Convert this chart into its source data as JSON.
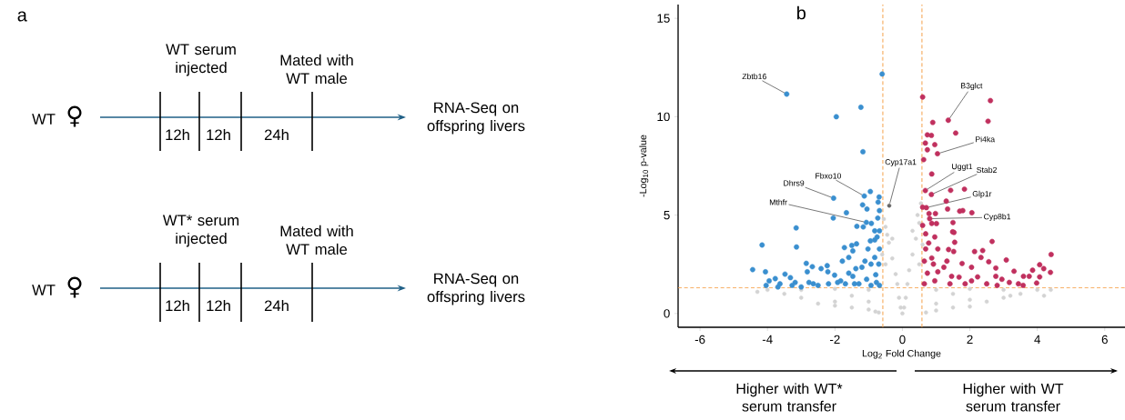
{
  "chart_data": [
    {
      "type": "other",
      "title": "a",
      "annotations": [
        "WT",
        "♀",
        "WT serum injected",
        "Mated with WT male",
        "12h",
        "12h",
        "24h",
        "RNA-Seq on offspring livers",
        "WT",
        "♀",
        "WT* serum injected",
        "Mated with WT male",
        "12h",
        "12h",
        "24h",
        "RNA-Seq on offspring livers"
      ]
    },
    {
      "type": "scatter",
      "title": "b",
      "xlabel": "Log$_{2}$ Fold Change",
      "ylabel": "-Log$_{10}$ p-value",
      "xlim": [
        -6.65,
        6.6
      ],
      "ylim": [
        -0.7,
        15.7
      ],
      "xticks": [
        -6,
        -4,
        -2,
        0,
        2,
        4,
        6
      ],
      "yticks": [
        0,
        5,
        10,
        15
      ],
      "grid": false,
      "marker": "circle",
      "series": [
        {
          "color": "#d3d3d3",
          "x": [
            0,
            0.05,
            -0.05,
            0.1,
            -0.1,
            0.15,
            -0.15,
            0.2,
            -0.2,
            0.3,
            -0.3,
            0.4,
            -0.4,
            0.5,
            -0.5,
            0.55,
            -0.55,
            0.45,
            -0.45,
            0.3,
            -0.3,
            -1,
            -1,
            -1,
            -2,
            -2,
            -2,
            -3,
            -3,
            -3.5,
            -4,
            -4.3,
            -1.5,
            -0.8,
            -2.5,
            1,
            1,
            1,
            2,
            2,
            2,
            3,
            3,
            3.5,
            4,
            4.4,
            4.2,
            1.5,
            2.5,
            3.2,
            0.7,
            -0.7,
            -0.6,
            0.6,
            -0.5,
            0.5,
            1.5,
            -1.5
          ],
          "values": [
            0,
            0.3,
            0.3,
            0.8,
            0.8,
            1.5,
            1.5,
            2.2,
            2.0,
            3.0,
            2.8,
            3.8,
            3.6,
            4.6,
            4.4,
            5.6,
            4.8,
            5.0,
            4.0,
            4.2,
            3.8,
            1.2,
            0.6,
            0.2,
            1.25,
            0.6,
            0.4,
            1.2,
            0.8,
            1.0,
            1.2,
            1.1,
            0.9,
            0.1,
            0.5,
            1.2,
            0.5,
            0.15,
            1.25,
            0.7,
            0.35,
            1.2,
            0.8,
            1.0,
            1.2,
            1.2,
            0.9,
            0.3,
            0.6,
            0.9,
            0.05,
            0.05,
            3.0,
            3.5,
            2.5,
            2.5,
            1.0,
            0.3
          ]
        },
        {
          "color": "#3a8fcf",
          "x": [
            -3.43,
            -0.6,
            -1.23,
            -1.96,
            -1.17,
            -2.04,
            -1.13,
            -0.95,
            -0.69,
            -0.72,
            -1.18,
            -1.05,
            -0.68,
            -1.66,
            -2.05,
            -0.73,
            -1.07,
            -0.92,
            -1.16,
            -1.35,
            -3.15,
            -4.16,
            -3.14,
            -0.82,
            -0.95,
            -1.36,
            -1.5,
            -1.72,
            -1.47,
            -1.59,
            -1.78,
            -2.85,
            -2.67,
            -2.23,
            -4.44,
            -4.06,
            -3.48,
            -2.82,
            -2.41,
            -2.21,
            -2.01,
            -1.59,
            -1.38,
            -1.11,
            -0.93,
            -0.82,
            -0.7,
            -3.95,
            -3.77,
            -3.63,
            -3.32,
            -3.18,
            -4.04,
            -3.69,
            -3.27,
            -3.0,
            -2.77,
            -2.5,
            -2.19,
            -1.92,
            -1.69,
            -1.47,
            -1.29,
            -1.06,
            -0.93,
            -0.77,
            -0.68,
            -0.79,
            -0.68,
            -0.68,
            -0.82,
            -0.75,
            -1.02,
            -1.2,
            -1.42,
            -1.83,
            -2.64
          ],
          "values": [
            11.15,
            12.17,
            10.48,
            10.0,
            8.22,
            5.86,
            5.97,
            6.2,
            5.92,
            5.66,
            5.52,
            5.31,
            5.23,
            5.12,
            4.85,
            4.85,
            4.63,
            4.58,
            4.4,
            4.43,
            4.35,
            3.48,
            3.38,
            3.74,
            3.69,
            3.54,
            3.46,
            3.35,
            3.18,
            2.85,
            2.66,
            2.55,
            2.38,
            2.43,
            2.23,
            2.12,
            2.0,
            2.12,
            2.28,
            2.12,
            1.95,
            2.05,
            2.28,
            2.66,
            2.51,
            2.85,
            2.51,
            1.66,
            1.77,
            1.51,
            1.82,
            1.58,
            1.43,
            1.35,
            1.43,
            1.35,
            1.58,
            1.43,
            1.51,
            1.58,
            1.51,
            1.89,
            1.51,
            1.74,
            1.43,
            1.58,
            1.43,
            1.97,
            3.28,
            4.2,
            4.2,
            3.89,
            3.28,
            2.35,
            1.51,
            1.66,
            1.51
          ]
        },
        {
          "color": "#c0305e",
          "x": [
            0.6,
            2.61,
            1.36,
            2.54,
            0.9,
            1.58,
            0.74,
            0.86,
            0.68,
            0.96,
            0.74,
            1.04,
            0.63,
            0.87,
            0.68,
            0.86,
            1.43,
            1.84,
            1.3,
            0.6,
            0.71,
            0.79,
            0.98,
            1.34,
            1.7,
            1.79,
            2.06,
            0.81,
            1.01,
            0.87,
            0.6,
            1.5,
            1.49,
            1.53,
            1.55,
            2.66,
            0.69,
            0.78,
            1.05,
            1.37,
            2.14,
            2.38,
            1.52,
            2.33,
            2.56,
            3.08,
            4.41,
            1.77,
            2.05,
            2.77,
            0.92,
            1.23,
            4.07,
            4.19,
            3.86,
            3.31,
            4.39,
            3.76,
            3.59,
            4.07,
            2.77,
            2.23,
            1.68,
            2.05,
            2.95,
            3.17,
            3.44,
            3.98,
            3.58,
            2.5,
            1.86,
            1.41,
            0.96,
            0.65,
            0.74,
            1.05,
            1.32,
            0.69,
            0.96,
            0.65,
            0.87,
            1.46,
            2.81
          ],
          "values": [
            11.0,
            10.82,
            9.82,
            9.77,
            9.71,
            9.17,
            9.08,
            9.05,
            8.66,
            8.58,
            8.32,
            8.12,
            7.82,
            7.09,
            6.25,
            6.05,
            6.26,
            6.32,
            5.71,
            5.4,
            5.38,
            5.08,
            5.08,
            5.31,
            5.2,
            5.23,
            5.12,
            4.82,
            4.57,
            4.58,
            4.48,
            4.62,
            4.15,
            4.12,
            3.62,
            3.66,
            4.05,
            3.58,
            3.28,
            3.25,
            3.15,
            3.2,
            3.15,
            2.85,
            2.63,
            2.72,
            3.0,
            2.54,
            2.35,
            2.31,
            2.51,
            2.35,
            2.48,
            2.28,
            2.2,
            2.15,
            2.09,
            1.89,
            1.89,
            1.86,
            1.89,
            1.86,
            1.85,
            1.66,
            1.74,
            1.58,
            1.51,
            1.55,
            1.43,
            1.51,
            1.51,
            1.51,
            1.66,
            1.51,
            2.05,
            2.12,
            2.66,
            3.28,
            3.89,
            2.66,
            2.82,
            1.89,
            1.43
          ]
        },
        {
          "color": "#666666",
          "x": [
            -0.39
          ],
          "values": [
            5.48
          ]
        }
      ],
      "ref_lines": [
        {
          "axis": "x",
          "value": -0.58,
          "color": "#f39a3c",
          "line_style": "dashed"
        },
        {
          "axis": "x",
          "value": 0.58,
          "color": "#f39a3c",
          "line_style": "dashed"
        },
        {
          "axis": "y",
          "value": 1.3,
          "color": "#f39a3c",
          "line_style": "dashed"
        }
      ],
      "annotations": [
        {
          "text": "Zbtb16",
          "x": -3.43,
          "y": 11.15
        },
        {
          "text": "Dhrs9",
          "x": -2.04,
          "y": 5.86
        },
        {
          "text": "Fbxo10",
          "x": -1.13,
          "y": 5.97
        },
        {
          "text": "Mthfr",
          "x": -1.07,
          "y": 4.63
        },
        {
          "text": "Cyp17a1",
          "x": -0.39,
          "y": 5.48
        },
        {
          "text": "B3glct",
          "x": 1.36,
          "y": 9.82
        },
        {
          "text": "Pi4ka",
          "x": 1.04,
          "y": 8.12
        },
        {
          "text": "Uggt1",
          "x": 0.68,
          "y": 6.25
        },
        {
          "text": "Stab2",
          "x": 0.86,
          "y": 6.05
        },
        {
          "text": "Glp1r",
          "x": 0.71,
          "y": 5.38
        },
        {
          "text": "Cyp8b1",
          "x": 0.81,
          "y": 4.82
        },
        "Higher with WT* serum transfer",
        "Higher with WT serum transfer"
      ]
    }
  ]
}
